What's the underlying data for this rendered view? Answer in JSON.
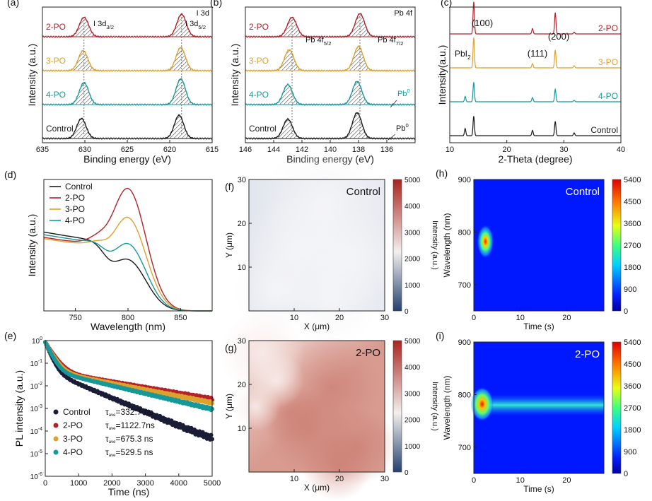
{
  "chart_data": [
    {
      "id": "a",
      "type": "line",
      "panel_label": "(a)",
      "title": "I 3d",
      "xlabel": "Binding energy (eV)",
      "ylabel": "Intensity (a.u.)",
      "xlim": [
        635,
        615
      ],
      "xticks": [
        "635",
        "630",
        "625",
        "620",
        "615"
      ],
      "series": [
        {
          "name": "2-PO",
          "color": "#b2222b",
          "peaks": [
            {
              "x": 630.1,
              "h": 0.6,
              "w": 0.55
            },
            {
              "x": 618.6,
              "h": 0.7,
              "w": 0.55
            }
          ]
        },
        {
          "name": "3-PO",
          "color": "#dda12d",
          "peaks": [
            {
              "x": 630.2,
              "h": 0.62,
              "w": 0.55
            },
            {
              "x": 618.7,
              "h": 0.72,
              "w": 0.55
            }
          ]
        },
        {
          "name": "4-PO",
          "color": "#17989b",
          "peaks": [
            {
              "x": 630.1,
              "h": 0.68,
              "w": 0.55
            },
            {
              "x": 618.7,
              "h": 0.8,
              "w": 0.55
            }
          ]
        },
        {
          "name": "Control",
          "color": "#1a1a1a",
          "peaks": [
            {
              "x": 630.4,
              "h": 0.62,
              "w": 0.55
            },
            {
              "x": 618.9,
              "h": 0.72,
              "w": 0.55
            }
          ]
        }
      ],
      "annotations": {
        "peak1_main": "I 3d",
        "peak1_sub": "3/2",
        "peak2_main": "I 3d",
        "peak2_sub": "5/2"
      }
    },
    {
      "id": "b",
      "type": "line",
      "panel_label": "(b)",
      "title": "Pb 4f",
      "xlabel": "Binding energy (eV)",
      "ylabel": "Intensity (a.u.)",
      "xlim": [
        146,
        134
      ],
      "xticks": [
        "146",
        "144",
        "142",
        "140",
        "138",
        "136"
      ],
      "series": [
        {
          "name": "2-PO",
          "color": "#b2222b",
          "peaks": [
            {
              "x": 142.7,
              "h": 0.6,
              "w": 0.55
            },
            {
              "x": 137.9,
              "h": 0.72,
              "w": 0.55
            }
          ]
        },
        {
          "name": "3-PO",
          "color": "#dda12d",
          "peaks": [
            {
              "x": 142.9,
              "h": 0.65,
              "w": 0.55
            },
            {
              "x": 138.0,
              "h": 0.75,
              "w": 0.55
            }
          ]
        },
        {
          "name": "4-PO",
          "color": "#17989b",
          "peaks": [
            {
              "x": 143.0,
              "h": 0.62,
              "w": 0.55
            },
            {
              "x": 138.1,
              "h": 0.72,
              "w": 0.55
            }
          ]
        },
        {
          "name": "Control",
          "color": "#1a1a1a",
          "peaks": [
            {
              "x": 143.0,
              "h": 0.6,
              "w": 0.55
            },
            {
              "x": 138.1,
              "h": 0.8,
              "w": 0.55
            }
          ]
        }
      ],
      "annotations": {
        "peak1_main": "Pb 4f",
        "peak1_sub": "5/2",
        "peak2_main": "Pb 4f",
        "peak2_sub": "7/2",
        "pb0": "Pb",
        "pb0_sup": "0"
      }
    },
    {
      "id": "c",
      "type": "line",
      "panel_label": "(c)",
      "xlabel": "2-Theta (degree)",
      "ylabel": "Intensity(a.u.)",
      "xlim": [
        10,
        40
      ],
      "xticks": [
        "10",
        "20",
        "30",
        "40"
      ],
      "series": [
        {
          "name": "2-PO",
          "color": "#b2222b",
          "peaks": [
            {
              "x": 14.2,
              "h": 0.9
            },
            {
              "x": 24.5,
              "h": 0.15
            },
            {
              "x": 28.5,
              "h": 0.6
            },
            {
              "x": 31.8,
              "h": 0.05
            }
          ]
        },
        {
          "name": "3-PO",
          "color": "#dda12d",
          "peaks": [
            {
              "x": 14.2,
              "h": 0.85
            },
            {
              "x": 24.5,
              "h": 0.12
            },
            {
              "x": 28.5,
              "h": 0.5
            },
            {
              "x": 31.8,
              "h": 0.06
            }
          ]
        },
        {
          "name": "4-PO",
          "color": "#17989b",
          "peaks": [
            {
              "x": 12.7,
              "h": 0.15
            },
            {
              "x": 14.2,
              "h": 0.55
            },
            {
              "x": 24.5,
              "h": 0.12
            },
            {
              "x": 28.5,
              "h": 0.35
            },
            {
              "x": 31.8,
              "h": 0.04
            }
          ]
        },
        {
          "name": "Control",
          "color": "#1a1a1a",
          "peaks": [
            {
              "x": 12.7,
              "h": 0.2
            },
            {
              "x": 14.2,
              "h": 0.55
            },
            {
              "x": 24.5,
              "h": 0.15
            },
            {
              "x": 28.5,
              "h": 0.4
            },
            {
              "x": 31.8,
              "h": 0.08
            }
          ]
        }
      ],
      "annotations": {
        "p100": "(100)",
        "p111": "(111)",
        "p200": "(200)",
        "pbi2": "PbI",
        "pbi2_sub": "2"
      }
    },
    {
      "id": "d",
      "type": "line",
      "panel_label": "(d)",
      "xlabel": "Wavelength (nm)",
      "ylabel": "Intensity (a.u.)",
      "xlim": [
        720,
        880
      ],
      "xticks": [
        "750",
        "800",
        "850"
      ],
      "legend": [
        "Control",
        "2-PO",
        "3-PO",
        "4-PO"
      ],
      "series": [
        {
          "name": "Control",
          "color": "#1a1a1a",
          "pl_peak": 0.38,
          "abs": 0.6
        },
        {
          "name": "2-PO",
          "color": "#b2222b",
          "pl_peak": 0.92,
          "abs": 0.56
        },
        {
          "name": "3-PO",
          "color": "#dda12d",
          "pl_peak": 0.7,
          "abs": 0.55
        },
        {
          "name": "4-PO",
          "color": "#17989b",
          "pl_peak": 0.5,
          "abs": 0.58
        }
      ]
    },
    {
      "id": "e",
      "type": "scatter",
      "panel_label": "(e)",
      "xlabel": "Time (ns)",
      "ylabel": "PL intensity (a.u.)",
      "xlim": [
        0,
        5000
      ],
      "ylim_log": [
        -6,
        0
      ],
      "xticks": [
        "0",
        "1000",
        "2000",
        "3000",
        "4000",
        "5000"
      ],
      "yticks": [
        "10",
        "10",
        "10",
        "10",
        "10",
        "10",
        "10"
      ],
      "yticks_exp": [
        "0",
        "-1",
        "-2",
        "-3",
        "-4",
        "-5",
        "-6"
      ],
      "tau_label": "τ",
      "tau_sub": "ave",
      "series": [
        {
          "name": "Control",
          "color": "#1a1d36",
          "tau": "=332.7 ns",
          "a": 0.8,
          "t1": 120,
          "t2": 700
        },
        {
          "name": "2-PO",
          "color": "#b2222b",
          "tau": "=1122.7ns",
          "a": 0.8,
          "t1": 180,
          "t2": 1700
        },
        {
          "name": "3-PO",
          "color": "#dda12d",
          "tau": "=675.3 ns",
          "a": 0.8,
          "t1": 160,
          "t2": 1500
        },
        {
          "name": "4-PO",
          "color": "#17989b",
          "tau": "=529.5 ns",
          "a": 0.8,
          "t1": 140,
          "t2": 1250
        }
      ]
    },
    {
      "id": "f",
      "type": "heatmap",
      "panel_label": "(f)",
      "label": "Control",
      "xlabel": "X (μm)",
      "ylabel": "Y (μm)",
      "cbar_label": "Intensity (a.u.)",
      "xticks": [
        "10",
        "20",
        "30"
      ],
      "yticks": [
        "10",
        "20",
        "30"
      ],
      "cbar_ticks": [
        "0",
        "1000",
        "2000",
        "3000",
        "4000",
        "5000"
      ],
      "colors": {
        "low": "#24406e",
        "mid": "#f3f0ee",
        "high": "#a8241f",
        "base": "#e9ecf3"
      }
    },
    {
      "id": "g",
      "type": "heatmap",
      "panel_label": "(g)",
      "label": "2-PO",
      "xlabel": "X (μm)",
      "ylabel": "Y (μm)",
      "cbar_label": "Intensity (a.u.)",
      "xticks": [
        "10",
        "20",
        "30"
      ],
      "yticks": [
        "10",
        "20",
        "30"
      ],
      "cbar_ticks": [
        "0",
        "1000",
        "2000",
        "3000",
        "4000",
        "5000"
      ],
      "colors": {
        "base": "#d59488",
        "light": "#f0d8d2"
      }
    },
    {
      "id": "h",
      "type": "heatmap",
      "panel_label": "(h)",
      "label": "Control",
      "xlabel": "Time (s)",
      "ylabel": "Wavelength (nm)",
      "xticks": [
        "0",
        "10",
        "20"
      ],
      "yticks": [
        "700",
        "800",
        "900"
      ],
      "cbar_ticks": [
        "0",
        "900",
        "1800",
        "2700",
        "3600",
        "4500",
        "5400"
      ],
      "hotspot": {
        "t": 2.5,
        "wl": 782
      }
    },
    {
      "id": "i",
      "type": "heatmap",
      "panel_label": "(i)",
      "label": "2-PO",
      "xlabel": "Time (s)",
      "ylabel": "Wavelength (nm)",
      "xticks": [
        "0",
        "10",
        "20"
      ],
      "yticks": [
        "700",
        "800",
        "900"
      ],
      "cbar_ticks": [
        "0",
        "900",
        "1800",
        "2700",
        "3600",
        "4500",
        "5400"
      ],
      "hotspot": {
        "t": 1.8,
        "wl": 782
      }
    }
  ]
}
